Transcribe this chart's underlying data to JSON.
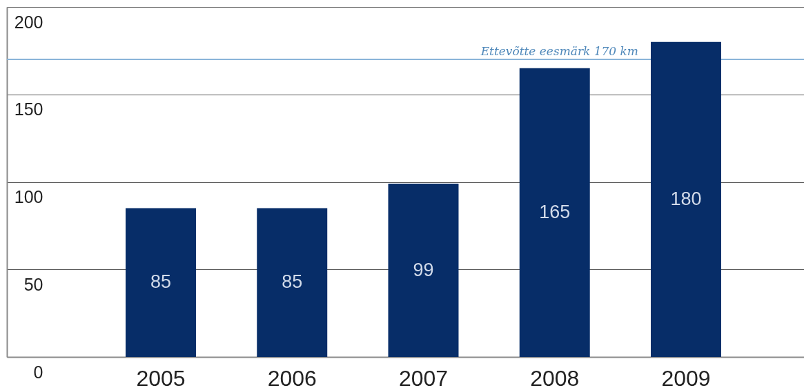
{
  "chart_data": {
    "type": "bar",
    "categories": [
      "2005",
      "2006",
      "2007",
      "2008",
      "2009"
    ],
    "values": [
      85,
      85,
      99,
      165,
      180
    ],
    "color": "#072d68",
    "ylim": [
      0,
      200
    ],
    "yticks": [
      0,
      50,
      100,
      150,
      200
    ],
    "grid": "y",
    "data_labels": true,
    "ref_lines": [
      {
        "axis": "y",
        "value": 170,
        "label": "Ettevõtte eesmärk 170 km",
        "color": "#8ab4d8"
      }
    ]
  }
}
